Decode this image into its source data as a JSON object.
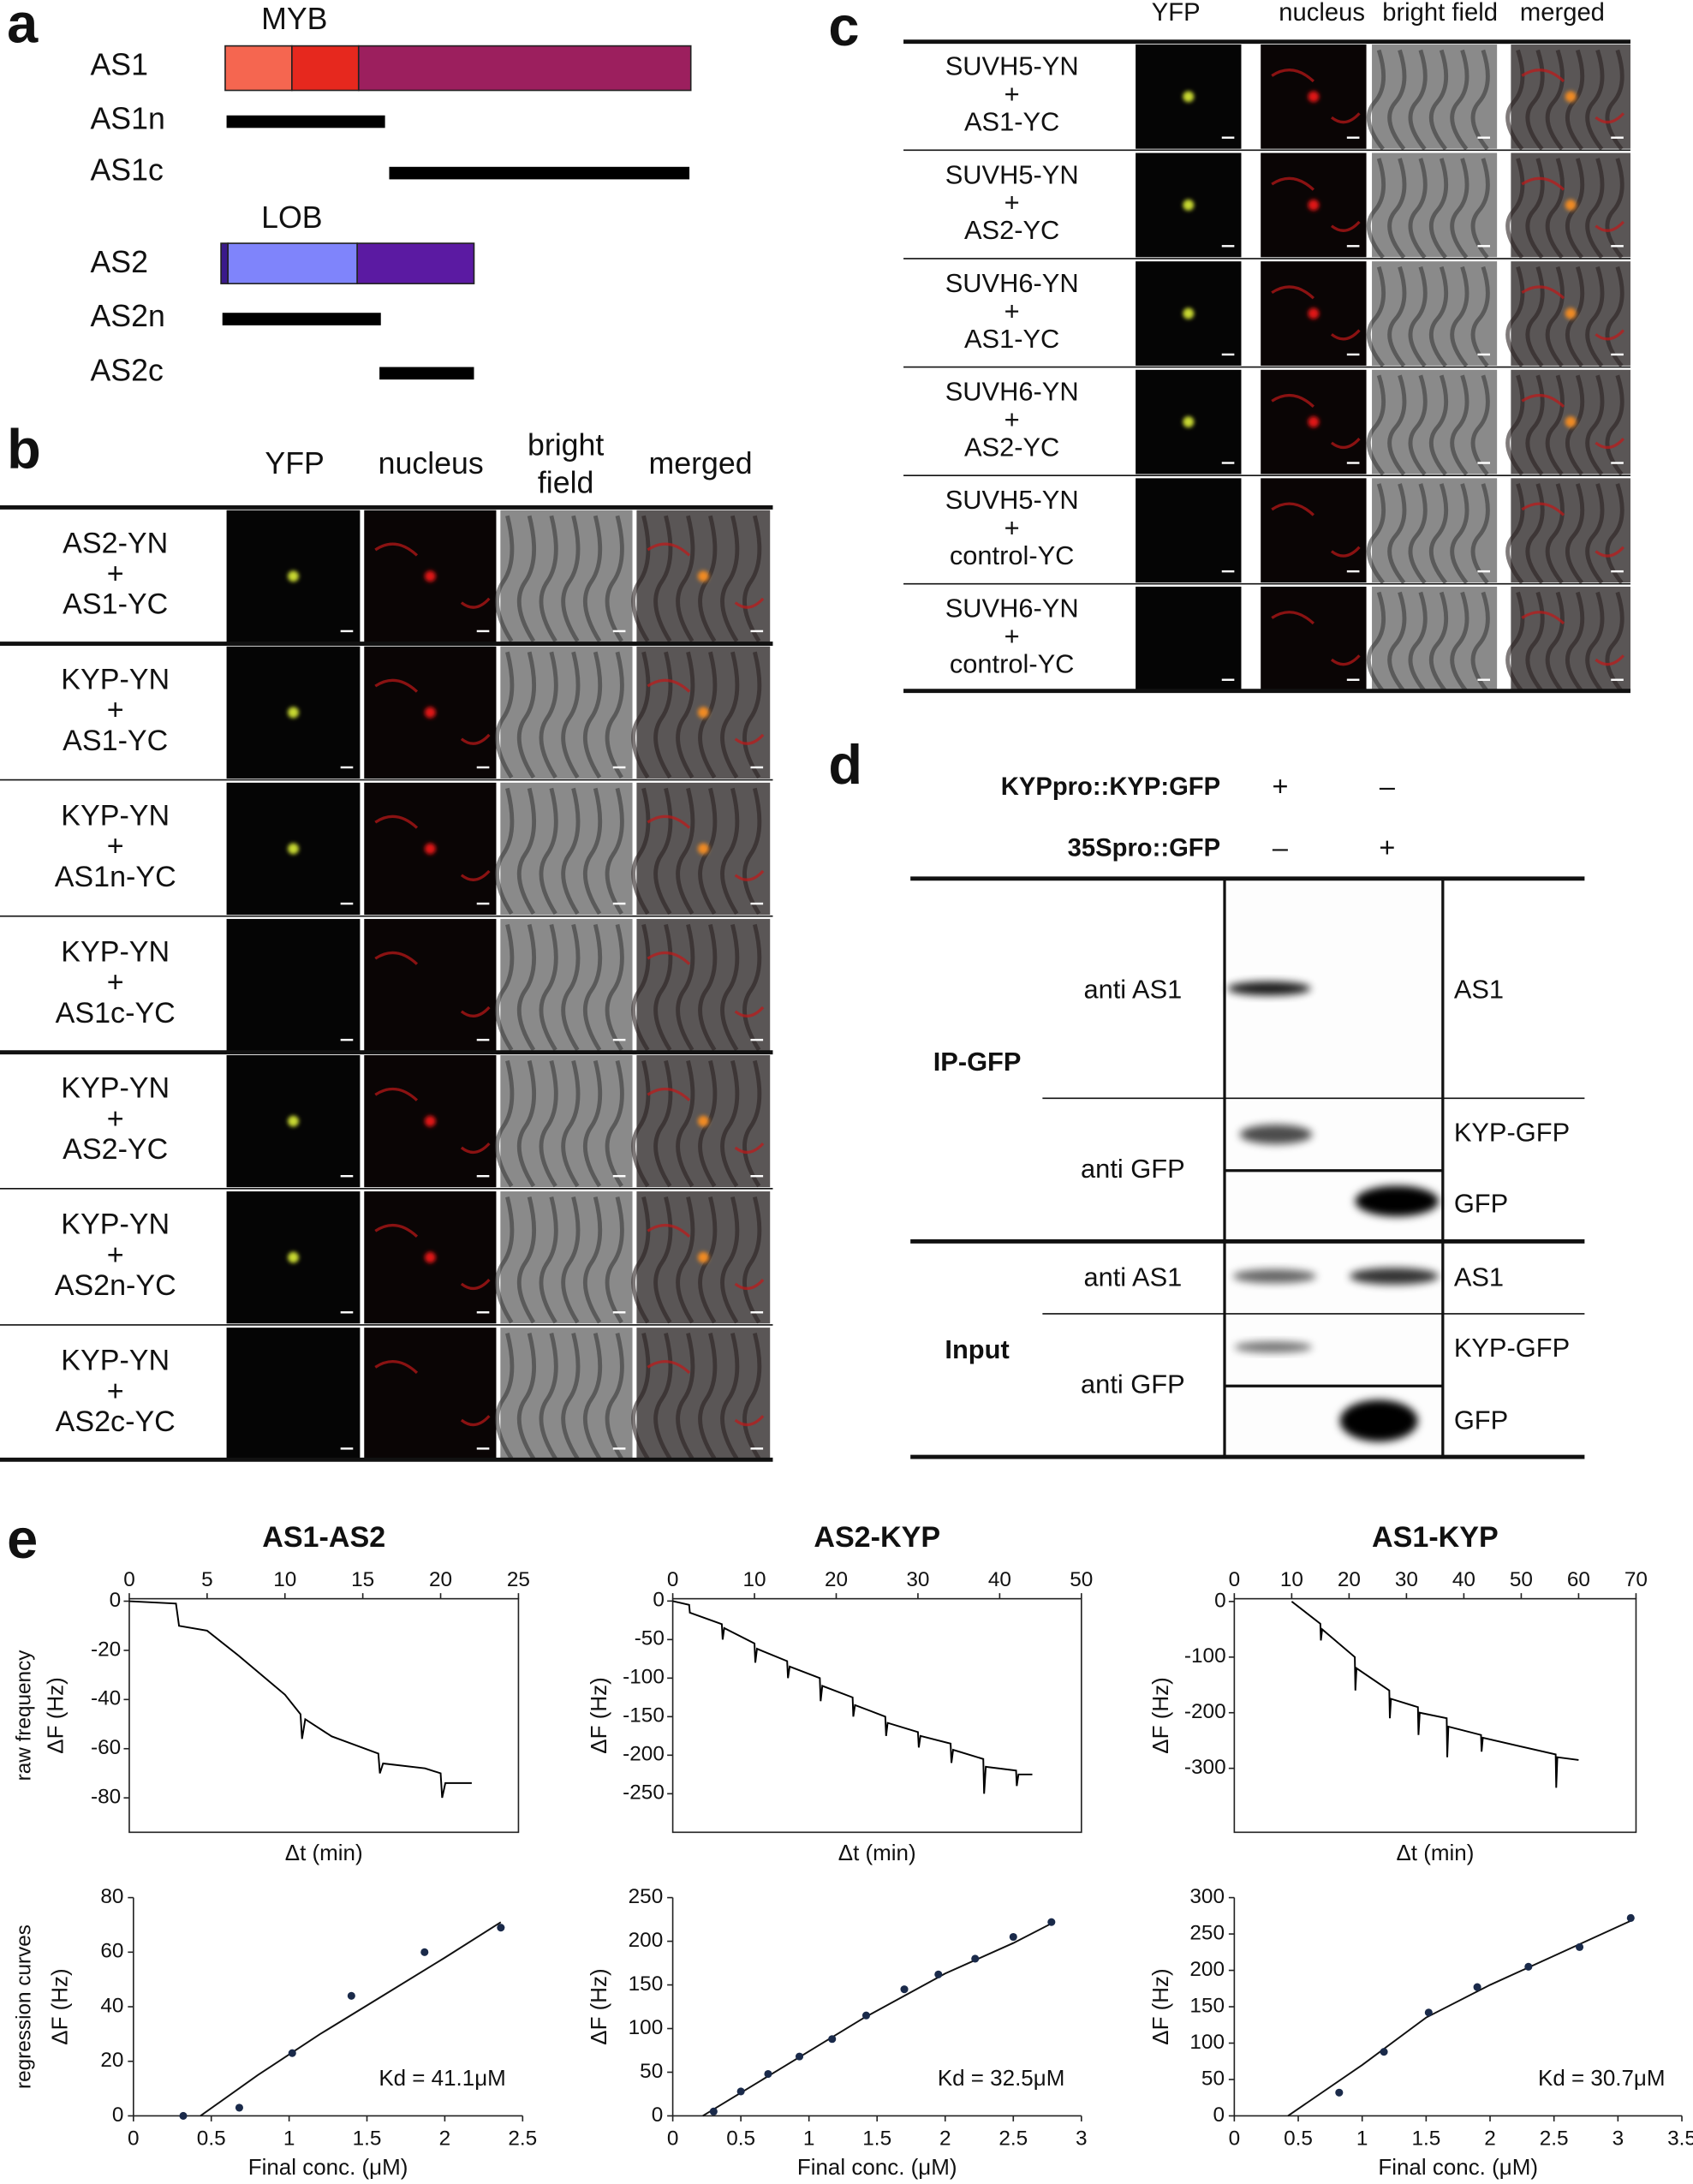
{
  "panel_a": {
    "label": "a",
    "domain_1": "MYB",
    "domain_2": "LOB",
    "constructs": [
      "AS1",
      "AS1n",
      "AS1c",
      "AS2",
      "AS2n",
      "AS2c"
    ]
  },
  "panel_b": {
    "label": "b",
    "headers": [
      "YFP",
      "nucleus",
      "bright field",
      "merged"
    ],
    "rows": [
      [
        "AS2-YN",
        "+",
        "AS1-YC"
      ],
      [
        "KYP-YN",
        "+",
        "AS1-YC"
      ],
      [
        "KYP-YN",
        "+",
        "AS1n-YC"
      ],
      [
        "KYP-YN",
        "+",
        "AS1c-YC"
      ],
      [
        "KYP-YN",
        "+",
        "AS2-YC"
      ],
      [
        "KYP-YN",
        "+",
        "AS2n-YC"
      ],
      [
        "KYP-YN",
        "+",
        "AS2c-YC"
      ]
    ]
  },
  "panel_c": {
    "label": "c",
    "headers": [
      "YFP",
      "nucleus",
      "bright field",
      "merged"
    ],
    "rows": [
      [
        "SUVH5-YN",
        "+",
        "AS1-YC"
      ],
      [
        "SUVH5-YN",
        "+",
        "AS2-YC"
      ],
      [
        "SUVH6-YN",
        "+",
        "AS1-YC"
      ],
      [
        "SUVH6-YN",
        "+",
        "AS2-YC"
      ],
      [
        "SUVH5-YN",
        "+",
        "control-YC"
      ],
      [
        "SUVH6-YN",
        "+",
        "control-YC"
      ]
    ]
  },
  "panel_d": {
    "label": "d",
    "constructs": [
      {
        "name": "KYPpro::KYP:GFP",
        "signs": [
          "+",
          "–"
        ]
      },
      {
        "name": "35Spro::GFP",
        "signs": [
          "–",
          "+"
        ]
      }
    ],
    "groups": [
      "IP-GFP",
      "Input"
    ],
    "antibodies": [
      "anti AS1",
      "anti GFP",
      "anti AS1",
      "anti GFP"
    ],
    "bands": [
      "AS1",
      "KYP-GFP",
      "GFP",
      "AS1",
      "KYP-GFP",
      "GFP"
    ]
  },
  "panel_e": {
    "label": "e"
  },
  "chart_data": [
    {
      "type": "line",
      "title": "AS1-AS2",
      "row_label": "raw frequency",
      "xlabel": "Δt (min)",
      "ylabel": "ΔF (Hz)",
      "color": "#000000",
      "x": [
        0,
        3,
        3.2,
        5,
        7,
        10,
        11,
        11.1,
        11.3,
        13,
        16,
        16.1,
        16.3,
        19,
        20,
        20.1,
        20.3,
        22
      ],
      "values": [
        0,
        -1,
        -10,
        -12,
        -22,
        -38,
        -46,
        -56,
        -48,
        -55,
        -62,
        -70,
        -66,
        -68,
        -70,
        -80,
        -74,
        -74
      ],
      "xlim": [
        0,
        25
      ],
      "ylim": [
        -94,
        1
      ],
      "xticks": [
        0,
        5,
        10,
        15,
        20,
        25
      ],
      "yticks": [
        0,
        -20,
        -40,
        -60,
        -80
      ]
    },
    {
      "type": "line",
      "title": "AS2-KYP",
      "xlabel": "Δt (min)",
      "ylabel": "ΔF (Hz)",
      "color": "#000000",
      "x": [
        0,
        2,
        2.1,
        6,
        6.1,
        6.3,
        10,
        10.1,
        10.3,
        14,
        14.1,
        14.3,
        18,
        18.1,
        18.3,
        22,
        22.1,
        22.3,
        26,
        26.1,
        26.3,
        30,
        30.1,
        30.3,
        34,
        34.1,
        34.3,
        38,
        38.1,
        38.3,
        42,
        42.1,
        42.3,
        44
      ],
      "values": [
        0,
        -5,
        -15,
        -30,
        -50,
        -35,
        -55,
        -80,
        -62,
        -78,
        -100,
        -85,
        -100,
        -130,
        -110,
        -125,
        -150,
        -135,
        -150,
        -175,
        -158,
        -170,
        -190,
        -175,
        -185,
        -210,
        -193,
        -205,
        -250,
        -215,
        -220,
        -240,
        -225,
        -225
      ],
      "xlim": [
        0,
        50
      ],
      "ylim": [
        -300,
        3
      ],
      "xticks": [
        0,
        10,
        20,
        30,
        40,
        50
      ],
      "yticks": [
        0,
        -50,
        -100,
        -150,
        -200,
        -250
      ]
    },
    {
      "type": "line",
      "title": "AS1-KYP",
      "xlabel": "Δt (min)",
      "ylabel": "ΔF (Hz)",
      "color": "#000000",
      "x": [
        10,
        15,
        15.1,
        15.3,
        21,
        21.1,
        21.3,
        27,
        27.1,
        27.3,
        32,
        32.1,
        32.3,
        37,
        37.1,
        37.3,
        43,
        43.1,
        43.3,
        56,
        56.1,
        56.3,
        60
      ],
      "values": [
        0,
        -40,
        -70,
        -50,
        -100,
        -160,
        -120,
        -160,
        -210,
        -175,
        -190,
        -240,
        -200,
        -210,
        -280,
        -225,
        -240,
        -270,
        -245,
        -275,
        -335,
        -280,
        -285
      ],
      "xlim": [
        0,
        70
      ],
      "ylim": [
        -415,
        5
      ],
      "xticks": [
        0,
        10,
        20,
        30,
        40,
        50,
        60,
        70
      ],
      "yticks": [
        0,
        -100,
        -200,
        -300
      ]
    },
    {
      "type": "scatter",
      "row_label": "regression curves",
      "xlabel": "Final conc. (μM)",
      "ylabel": "ΔF (Hz)",
      "annotation": "Kd = 41.1μM",
      "color": "#1a2a4a",
      "x": [
        0.32,
        0.68,
        1.02,
        1.4,
        1.87,
        2.36
      ],
      "values": [
        0,
        3,
        23,
        44,
        60,
        69
      ],
      "fit": {
        "x": [
          0.43,
          0.8,
          1.2,
          1.6,
          2.0,
          2.36
        ],
        "values": [
          0,
          15,
          30,
          44,
          58,
          71
        ]
      },
      "xlim": [
        0,
        2.5
      ],
      "ylim": [
        0,
        80
      ],
      "xticks": [
        0,
        0.5,
        1,
        1.5,
        2,
        2.5
      ],
      "yticks": [
        0,
        20,
        40,
        60,
        80
      ]
    },
    {
      "type": "scatter",
      "xlabel": "Final conc. (μM)",
      "ylabel": "ΔF (Hz)",
      "annotation": "Kd = 32.5μM",
      "color": "#1a2a4a",
      "x": [
        0.3,
        0.5,
        0.7,
        0.93,
        1.17,
        1.42,
        1.7,
        1.95,
        2.22,
        2.5,
        2.78
      ],
      "values": [
        5,
        28,
        48,
        68,
        88,
        115,
        145,
        162,
        180,
        205,
        222
      ],
      "fit": {
        "x": [
          0.22,
          0.8,
          1.4,
          2,
          2.5,
          2.8
        ],
        "values": [
          0,
          55,
          112,
          163,
          198,
          222
        ]
      },
      "xlim": [
        0,
        3
      ],
      "ylim": [
        0,
        250
      ],
      "xticks": [
        0,
        0.5,
        1,
        1.5,
        2,
        2.5,
        3
      ],
      "yticks": [
        0,
        50,
        100,
        150,
        200,
        250
      ]
    },
    {
      "type": "scatter",
      "xlabel": "Final conc. (μM)",
      "ylabel": "ΔF (Hz)",
      "annotation": "Kd = 30.7μM",
      "color": "#1a2a4a",
      "x": [
        0.82,
        1.17,
        1.52,
        1.9,
        2.3,
        2.7,
        3.1
      ],
      "values": [
        32,
        88,
        142,
        177,
        205,
        232,
        272
      ],
      "fit": {
        "x": [
          0.42,
          1,
          1.5,
          2,
          2.5,
          3.1
        ],
        "values": [
          0,
          70,
          135,
          180,
          220,
          268
        ]
      },
      "xlim": [
        0,
        3.5
      ],
      "ylim": [
        0,
        300
      ],
      "xticks": [
        0,
        0.5,
        1,
        1.5,
        2,
        2.5,
        3,
        3.5
      ],
      "yticks": [
        0,
        50,
        100,
        150,
        200,
        250,
        300
      ]
    }
  ]
}
